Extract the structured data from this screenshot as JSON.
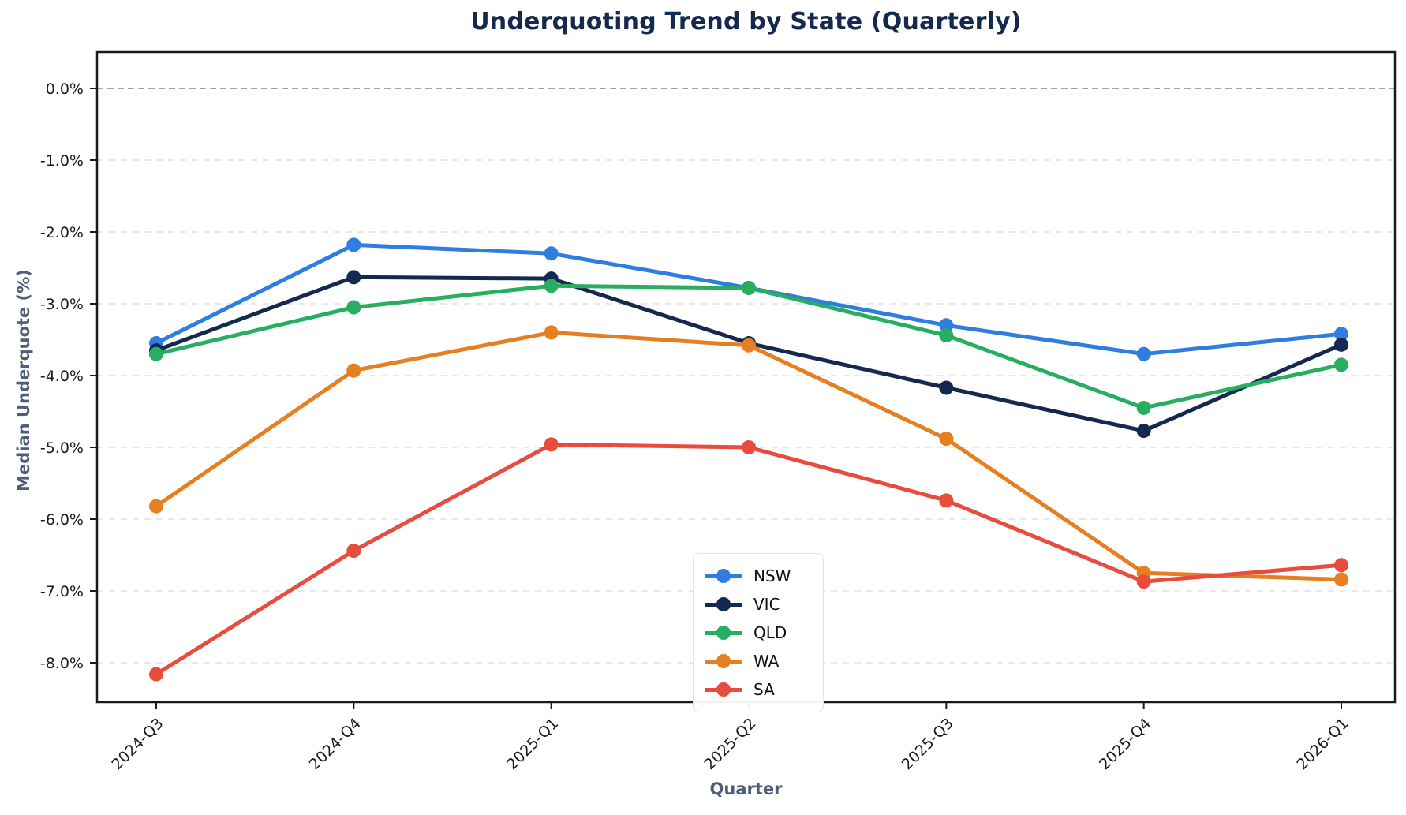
{
  "chart_data": {
    "type": "line",
    "title": "Underquoting Trend by State (Quarterly)",
    "xlabel": "Quarter",
    "ylabel": "Median Underquote (%)",
    "x": [
      "2024-Q3",
      "2024-Q4",
      "2025-Q1",
      "2025-Q2",
      "2025-Q3",
      "2025-Q4",
      "2026-Q1"
    ],
    "series": [
      {
        "name": "NSW",
        "color": "#2e7de1",
        "values": [
          -3.55,
          -2.18,
          -2.3,
          -2.78,
          -3.3,
          -3.7,
          -3.42
        ]
      },
      {
        "name": "VIC",
        "color": "#14294e",
        "values": [
          -3.65,
          -2.63,
          -2.65,
          -3.55,
          -4.17,
          -4.77,
          -3.57
        ]
      },
      {
        "name": "QLD",
        "color": "#27ae60",
        "values": [
          -3.7,
          -3.05,
          -2.75,
          -2.78,
          -3.44,
          -4.45,
          -3.85
        ]
      },
      {
        "name": "WA",
        "color": "#e67e22",
        "values": [
          -5.82,
          -3.93,
          -3.4,
          -3.58,
          -4.88,
          -6.75,
          -6.84
        ]
      },
      {
        "name": "SA",
        "color": "#e74c3c",
        "values": [
          -8.16,
          -6.44,
          -4.96,
          -5.0,
          -5.74,
          -6.87,
          -6.64
        ]
      }
    ],
    "yticks": [
      0,
      -1,
      -2,
      -3,
      -4,
      -5,
      -6,
      -7,
      -8
    ],
    "ytick_labels": [
      "0.0%",
      "-1.0%",
      "-2.0%",
      "-3.0%",
      "-4.0%",
      "-5.0%",
      "-6.0%",
      "-7.0%",
      "-8.0%"
    ],
    "ylim": [
      0.5,
      -8.55
    ],
    "grid": true,
    "legend_position": "lower-center"
  },
  "style": {
    "title_color": "#14294e",
    "axis_label_color": "#4e5d78",
    "tick_color": "#1a1a1a",
    "grid_color": "#e2e2e2",
    "zero_line_color": "#a3a3a3",
    "background": "#ffffff"
  }
}
